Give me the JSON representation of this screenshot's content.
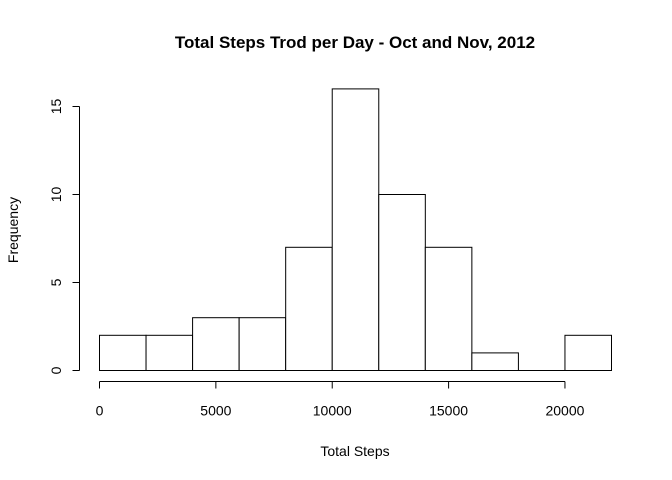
{
  "chart_data": {
    "type": "bar",
    "title": "Total Steps Trod per Day - Oct and Nov, 2012",
    "xlabel": "Total Steps",
    "ylabel": "Frequency",
    "bins": [
      {
        "start": 0,
        "end": 2000,
        "count": 2
      },
      {
        "start": 2000,
        "end": 4000,
        "count": 2
      },
      {
        "start": 4000,
        "end": 6000,
        "count": 3
      },
      {
        "start": 6000,
        "end": 8000,
        "count": 3
      },
      {
        "start": 8000,
        "end": 10000,
        "count": 7
      },
      {
        "start": 10000,
        "end": 12000,
        "count": 16
      },
      {
        "start": 12000,
        "end": 14000,
        "count": 10
      },
      {
        "start": 14000,
        "end": 16000,
        "count": 7
      },
      {
        "start": 16000,
        "end": 18000,
        "count": 1
      },
      {
        "start": 18000,
        "end": 20000,
        "count": 0
      },
      {
        "start": 20000,
        "end": 22000,
        "count": 2
      }
    ],
    "xlim": [
      0,
      22000
    ],
    "ylim": [
      0,
      16
    ],
    "x_ticks": [
      0,
      5000,
      10000,
      15000,
      20000
    ],
    "x_tick_labels": [
      "0",
      "5000",
      "10000",
      "15000",
      "20000"
    ],
    "y_ticks": [
      0,
      5,
      10,
      15
    ],
    "y_tick_labels": [
      "0",
      "5",
      "10",
      "15"
    ],
    "grid": false,
    "legend": "none"
  }
}
